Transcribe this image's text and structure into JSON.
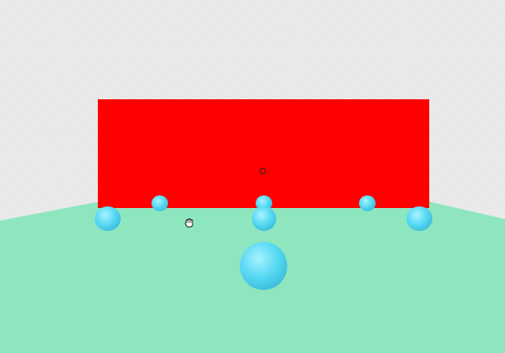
{
  "scene": {
    "colors": {
      "background": "#eeeeee",
      "ground": "#8ee6bf",
      "wall": "#ff0000",
      "sphere_light": "#9ff0ff",
      "sphere_base": "#4fd6f2",
      "sphere_dark": "#2aa9c9"
    },
    "objects": {
      "wall": "red-wall",
      "floor": "green-floor",
      "sphere_count": 7
    },
    "cursor": {
      "crosshair_icon": "crosshair-ring-icon",
      "pointer_icon": "hand-grab-icon"
    }
  }
}
